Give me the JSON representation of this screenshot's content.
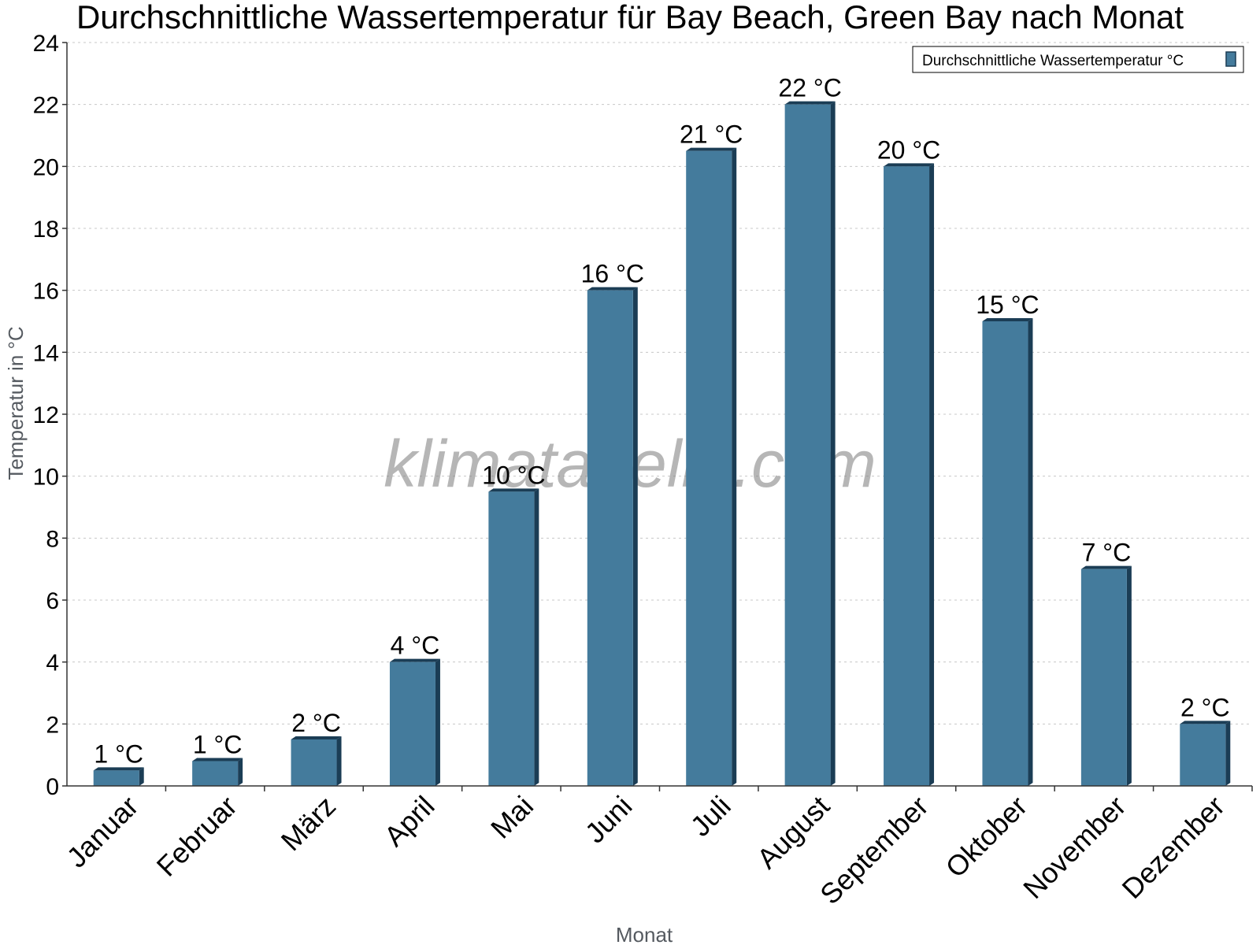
{
  "chart_data": {
    "type": "bar",
    "title": "Durchschnittliche Wassertemperatur für Bay Beach, Green Bay nach Monat",
    "xlabel": "Monat",
    "ylabel": "Temperatur in °C",
    "ylim": [
      0,
      24
    ],
    "yticks": [
      0,
      2,
      4,
      6,
      8,
      10,
      12,
      14,
      16,
      18,
      20,
      22,
      24
    ],
    "grid": true,
    "legend_position": "top-right",
    "watermark": "klimatabelle.com",
    "categories": [
      "Januar",
      "Februar",
      "März",
      "April",
      "Mai",
      "Juni",
      "Juli",
      "August",
      "September",
      "Oktober",
      "November",
      "Dezember"
    ],
    "series": [
      {
        "name": "Durchschnittliche Wassertemperatur °C",
        "color": "#447b9c",
        "values": [
          0.5,
          0.8,
          1.5,
          4.0,
          9.5,
          16.0,
          20.5,
          22.0,
          20.0,
          15.0,
          7.0,
          2.0
        ],
        "labels": [
          "1 °C",
          "1 °C",
          "2 °C",
          "4 °C",
          "10 °C",
          "16 °C",
          "21 °C",
          "22 °C",
          "20 °C",
          "15 °C",
          "7 °C",
          "2 °C"
        ]
      }
    ]
  }
}
